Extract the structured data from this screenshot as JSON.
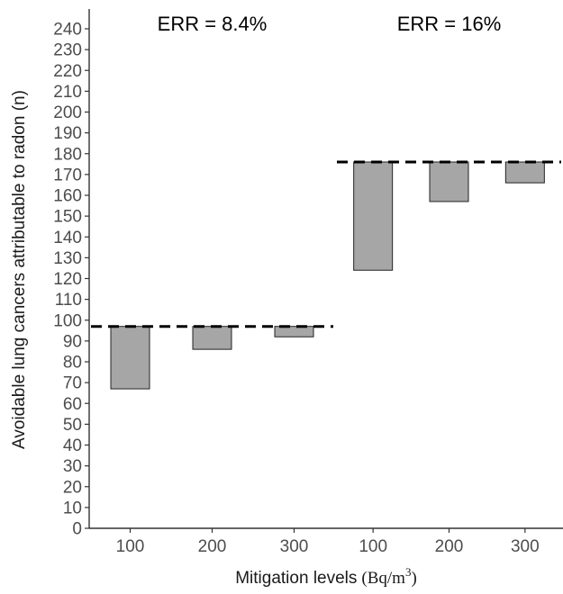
{
  "chart_data": {
    "type": "bar",
    "subtype": "floating-bar-facets",
    "ylabel": "Avoidable lung cancers attributable to radon (n)",
    "xlabel": "Mitigation levels",
    "xlabel_unit": {
      "base": "Bq/m",
      "exponent": "3"
    },
    "ylim": [
      0,
      240
    ],
    "yticks": [
      0,
      10,
      20,
      30,
      40,
      50,
      60,
      70,
      80,
      90,
      100,
      110,
      120,
      130,
      140,
      150,
      160,
      170,
      180,
      190,
      200,
      210,
      220,
      230,
      240
    ],
    "grid": false,
    "bar_color": "#a6a6a6",
    "facets": [
      {
        "title": "ERR = 8.4%",
        "reference_line": 97,
        "categories": [
          "100",
          "200",
          "300"
        ],
        "bars": [
          {
            "category": "100",
            "low": 67,
            "high": 97
          },
          {
            "category": "200",
            "low": 86,
            "high": 97
          },
          {
            "category": "300",
            "low": 92,
            "high": 97
          }
        ]
      },
      {
        "title": "ERR = 16%",
        "reference_line": 176,
        "categories": [
          "100",
          "200",
          "300"
        ],
        "bars": [
          {
            "category": "100",
            "low": 124,
            "high": 176
          },
          {
            "category": "200",
            "low": 157,
            "high": 176
          },
          {
            "category": "300",
            "low": 166,
            "high": 176
          }
        ]
      }
    ]
  }
}
